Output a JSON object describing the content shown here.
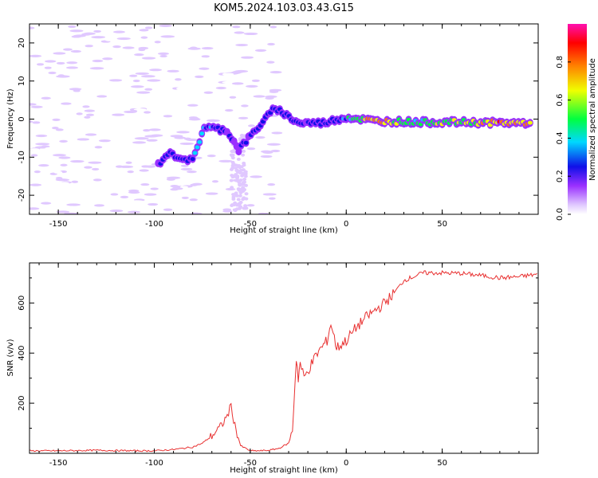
{
  "title": "KOM5.2024.103.03.43.G15",
  "chart_data": [
    {
      "type": "heatmap",
      "title": "KOM5.2024.103.03.43.G15",
      "xlabel": "Height of straight line (km)",
      "ylabel": "Frequency (Hz)",
      "xlim": [
        -165,
        100
      ],
      "ylim": [
        -25,
        25
      ],
      "x_ticks": [
        -150,
        -100,
        -50,
        0,
        50
      ],
      "y_ticks": [
        -20,
        -10,
        0,
        10,
        20
      ],
      "colorbar": {
        "label": "Normalized spectral amplitude",
        "range": [
          0.0,
          1.0
        ],
        "ticks": [
          0.0,
          0.2,
          0.4,
          0.6,
          0.8
        ],
        "colormap": [
          "#ffffff",
          "#e0c8ff",
          "#9a30ff",
          "#1010e8",
          "#00d8ff",
          "#00ff40",
          "#f0ff00",
          "#ff8000",
          "#ff0000",
          "#ff10b0"
        ]
      },
      "ridge": [
        {
          "x": -98,
          "y": -12,
          "amp": 0.25
        },
        {
          "x": -93,
          "y": -9,
          "amp": 0.3
        },
        {
          "x": -80,
          "y": -11,
          "amp": 0.35
        },
        {
          "x": -74,
          "y": -2,
          "amp": 0.45
        },
        {
          "x": -62,
          "y": -3,
          "amp": 0.3
        },
        {
          "x": -56,
          "y": -8,
          "amp": 0.25
        },
        {
          "x": -37,
          "y": 3,
          "amp": 0.35
        },
        {
          "x": -25,
          "y": -1,
          "amp": 0.3
        },
        {
          "x": -12,
          "y": -1,
          "amp": 0.3
        },
        {
          "x": 0,
          "y": 0.5,
          "amp": 0.45
        },
        {
          "x": 15,
          "y": -0.5,
          "amp": 0.85
        },
        {
          "x": 40,
          "y": -0.8,
          "amp": 0.55
        },
        {
          "x": 60,
          "y": -0.8,
          "amp": 0.7
        },
        {
          "x": 80,
          "y": -1,
          "amp": 0.85
        },
        {
          "x": 97,
          "y": -1,
          "amp": 0.8
        }
      ]
    },
    {
      "type": "line",
      "xlabel": "Height of straight line (km)",
      "ylabel": "SNR (v/v)",
      "xlim": [
        -165,
        100
      ],
      "ylim": [
        0,
        760
      ],
      "x_ticks": [
        -150,
        -100,
        -50,
        0,
        50
      ],
      "y_ticks": [
        200,
        400,
        600
      ],
      "color": "#e83030",
      "series": [
        {
          "x": [
            -165,
            -150,
            -130,
            -110,
            -100,
            -90,
            -85,
            -80,
            -75,
            -70,
            -65,
            -62,
            -60,
            -58,
            -55,
            -50,
            -45,
            -40,
            -35,
            -30,
            -28,
            -26,
            -25,
            -24,
            -22,
            -20,
            -15,
            -10,
            -8,
            -5,
            0,
            5,
            10,
            15,
            20,
            25,
            30,
            40,
            50,
            60,
            70,
            80,
            90,
            100
          ],
          "y": [
            10,
            10,
            12,
            10,
            10,
            15,
            20,
            25,
            40,
            70,
            110,
            150,
            190,
            110,
            30,
            10,
            10,
            12,
            20,
            40,
            90,
            380,
            300,
            360,
            300,
            330,
            400,
            450,
            520,
            420,
            450,
            500,
            540,
            570,
            600,
            640,
            690,
            720,
            720,
            718,
            710,
            700,
            705,
            715
          ]
        }
      ]
    }
  ]
}
